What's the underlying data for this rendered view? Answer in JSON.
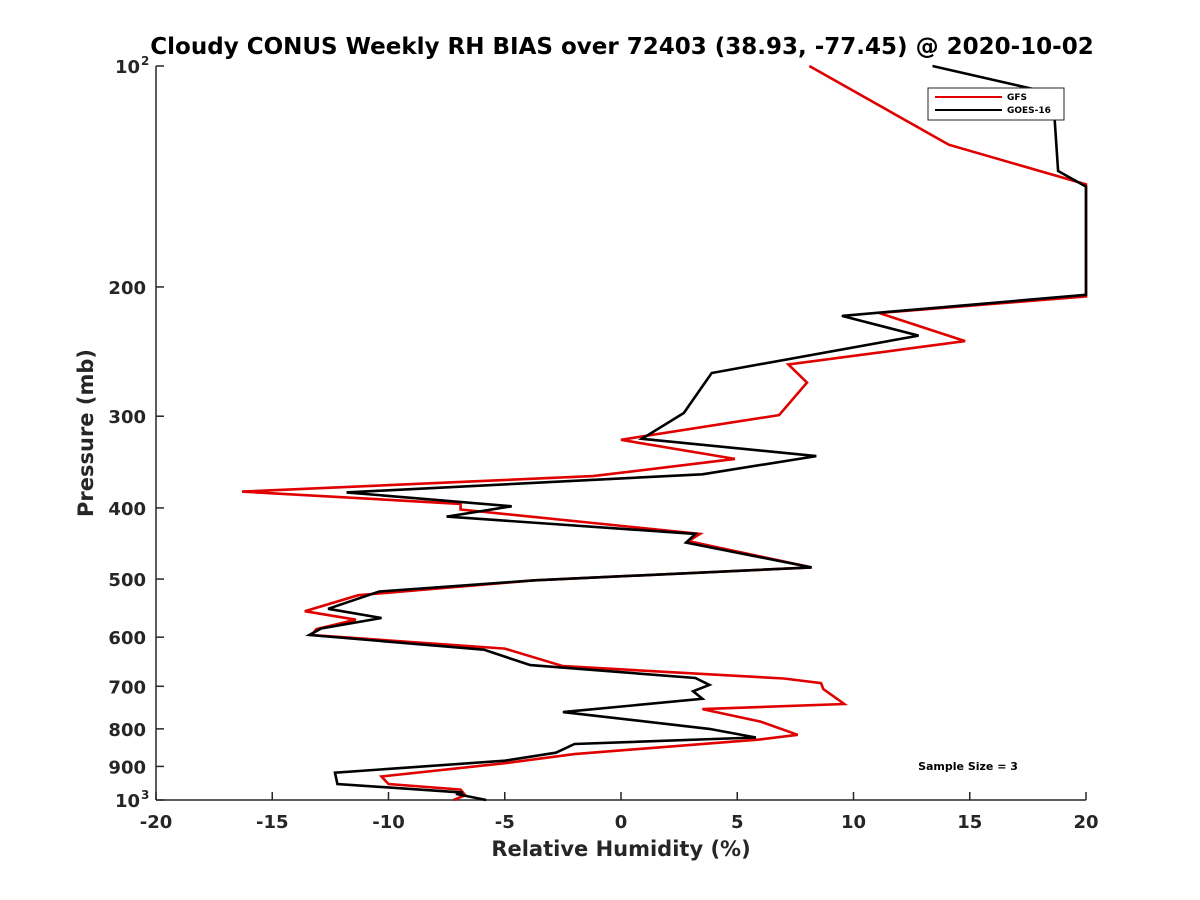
{
  "chart_data": {
    "type": "line",
    "title": "Cloudy CONUS Weekly RH BIAS over 72403 (38.93, -77.45) @ 2020-10-02",
    "xlabel": "Relative Humidity (%)",
    "ylabel": "Pressure (mb)",
    "xlim": [
      -20,
      20
    ],
    "ylim": [
      100,
      1000
    ],
    "y_scale": "log",
    "y_reversed": true,
    "grid": false,
    "legend_position": "top-right",
    "x_ticks": [
      "-20",
      "-15",
      "-10",
      "-5",
      "0",
      "5",
      "10",
      "15",
      "20"
    ],
    "y_ticks": [
      {
        "value": 100,
        "label": "10",
        "exp": "2"
      },
      {
        "value": 200,
        "label": "200",
        "exp": ""
      },
      {
        "value": 300,
        "label": "300",
        "exp": ""
      },
      {
        "value": 400,
        "label": "400",
        "exp": ""
      },
      {
        "value": 500,
        "label": "500",
        "exp": ""
      },
      {
        "value": 600,
        "label": "600",
        "exp": ""
      },
      {
        "value": 700,
        "label": "700",
        "exp": ""
      },
      {
        "value": 800,
        "label": "800",
        "exp": ""
      },
      {
        "value": 900,
        "label": "900",
        "exp": ""
      },
      {
        "value": 1000,
        "label": "10",
        "exp": "3"
      }
    ],
    "annotation": "Sample Size = 3",
    "series": [
      {
        "name": "GFS",
        "color": "#e00000",
        "points": [
          [
            8.1,
            100
          ],
          [
            14.1,
            128
          ],
          [
            20.0,
            145
          ],
          [
            20.0,
            206
          ],
          [
            11.1,
            217
          ],
          [
            14.8,
            237
          ],
          [
            7.2,
            255
          ],
          [
            8.0,
            270
          ],
          [
            6.8,
            299
          ],
          [
            0.0,
            323
          ],
          [
            4.9,
            343
          ],
          [
            -1.2,
            362
          ],
          [
            -16.3,
            380
          ],
          [
            -6.9,
            395
          ],
          [
            -6.9,
            402
          ],
          [
            3.4,
            434
          ],
          [
            2.9,
            444
          ],
          [
            8.2,
            482
          ],
          [
            -3.7,
            502
          ],
          [
            -11.3,
            526
          ],
          [
            -13.6,
            553
          ],
          [
            -11.4,
            568
          ],
          [
            -13.1,
            585
          ],
          [
            -13.3,
            596
          ],
          [
            -5.0,
            622
          ],
          [
            -2.5,
            657
          ],
          [
            7.0,
            683
          ],
          [
            8.6,
            693
          ],
          [
            8.7,
            706
          ],
          [
            9.6,
            740
          ],
          [
            3.5,
            752
          ],
          [
            6.0,
            782
          ],
          [
            7.6,
            815
          ],
          [
            6.0,
            827
          ],
          [
            -2.0,
            866
          ],
          [
            -5.0,
            891
          ],
          [
            -10.3,
            929
          ],
          [
            -10.0,
            951
          ],
          [
            -6.9,
            968
          ],
          [
            -6.7,
            985
          ],
          [
            -7.2,
            1000
          ]
        ]
      },
      {
        "name": "GOES-16",
        "color": "#000000",
        "points": [
          [
            13.4,
            100
          ],
          [
            18.0,
            108
          ],
          [
            18.6,
            112
          ],
          [
            18.8,
            139
          ],
          [
            20.0,
            146
          ],
          [
            20.0,
            205
          ],
          [
            9.5,
            219
          ],
          [
            12.8,
            233
          ],
          [
            3.9,
            262
          ],
          [
            2.7,
            297
          ],
          [
            0.9,
            322
          ],
          [
            8.4,
            340
          ],
          [
            3.5,
            360
          ],
          [
            -11.8,
            381
          ],
          [
            -4.7,
            398
          ],
          [
            -7.5,
            411
          ],
          [
            3.2,
            434
          ],
          [
            2.8,
            446
          ],
          [
            8.2,
            482
          ],
          [
            -3.7,
            502
          ],
          [
            -10.4,
            520
          ],
          [
            -12.6,
            549
          ],
          [
            -10.3,
            565
          ],
          [
            -12.9,
            584
          ],
          [
            -13.4,
            596
          ],
          [
            -5.9,
            624
          ],
          [
            -3.9,
            655
          ],
          [
            3.2,
            682
          ],
          [
            3.8,
            697
          ],
          [
            3.1,
            711
          ],
          [
            3.5,
            728
          ],
          [
            -2.5,
            759
          ],
          [
            3.8,
            800
          ],
          [
            5.8,
            822
          ],
          [
            -2.0,
            839
          ],
          [
            -2.8,
            862
          ],
          [
            -5.0,
            884
          ],
          [
            -12.3,
            918
          ],
          [
            -12.2,
            951
          ],
          [
            -6.8,
            977
          ],
          [
            -7.1,
            981
          ],
          [
            -5.8,
            1000
          ]
        ]
      }
    ]
  }
}
